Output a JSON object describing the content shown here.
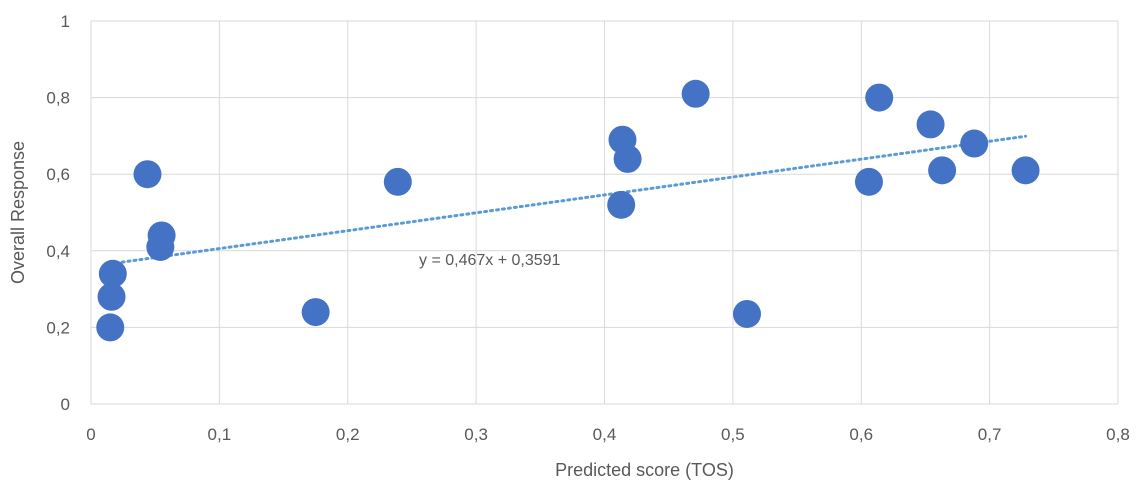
{
  "chart_data": {
    "type": "scatter",
    "title": "",
    "xlabel": "Predicted score (TOS)",
    "ylabel": "Overall Response",
    "xlim": [
      0,
      0.8
    ],
    "ylim": [
      0,
      1
    ],
    "x_ticks": [
      0,
      0.1,
      0.2,
      0.3,
      0.4,
      0.5,
      0.6,
      0.7,
      0.8
    ],
    "y_ticks": [
      0,
      0.2,
      0.4,
      0.6,
      0.8,
      1
    ],
    "x_tick_labels": [
      "0",
      "0,1",
      "0,2",
      "0,3",
      "0,4",
      "0,5",
      "0,6",
      "0,7",
      "0,8"
    ],
    "y_tick_labels": [
      "0",
      "0,2",
      "0,4",
      "0,6",
      "0,8",
      "1"
    ],
    "grid": true,
    "legend": "none",
    "series": [
      {
        "marker_color": "#4472c4",
        "points": [
          {
            "x": 0.015,
            "y": 0.2
          },
          {
            "x": 0.016,
            "y": 0.28
          },
          {
            "x": 0.017,
            "y": 0.34
          },
          {
            "x": 0.044,
            "y": 0.6
          },
          {
            "x": 0.054,
            "y": 0.41
          },
          {
            "x": 0.055,
            "y": 0.44
          },
          {
            "x": 0.175,
            "y": 0.24
          },
          {
            "x": 0.239,
            "y": 0.58
          },
          {
            "x": 0.413,
            "y": 0.52
          },
          {
            "x": 0.414,
            "y": 0.69
          },
          {
            "x": 0.418,
            "y": 0.64
          },
          {
            "x": 0.471,
            "y": 0.81
          },
          {
            "x": 0.511,
            "y": 0.235
          },
          {
            "x": 0.606,
            "y": 0.58
          },
          {
            "x": 0.614,
            "y": 0.8
          },
          {
            "x": 0.654,
            "y": 0.73
          },
          {
            "x": 0.663,
            "y": 0.61
          },
          {
            "x": 0.688,
            "y": 0.68
          },
          {
            "x": 0.728,
            "y": 0.61
          }
        ]
      }
    ],
    "trendline": {
      "type": "linear",
      "slope": 0.467,
      "intercept": 0.3591,
      "x_range": [
        0.015,
        0.728
      ],
      "color": "#5b9bd5",
      "style": "dotted",
      "equation_label": "y = 0,467x + 0,3591"
    }
  }
}
